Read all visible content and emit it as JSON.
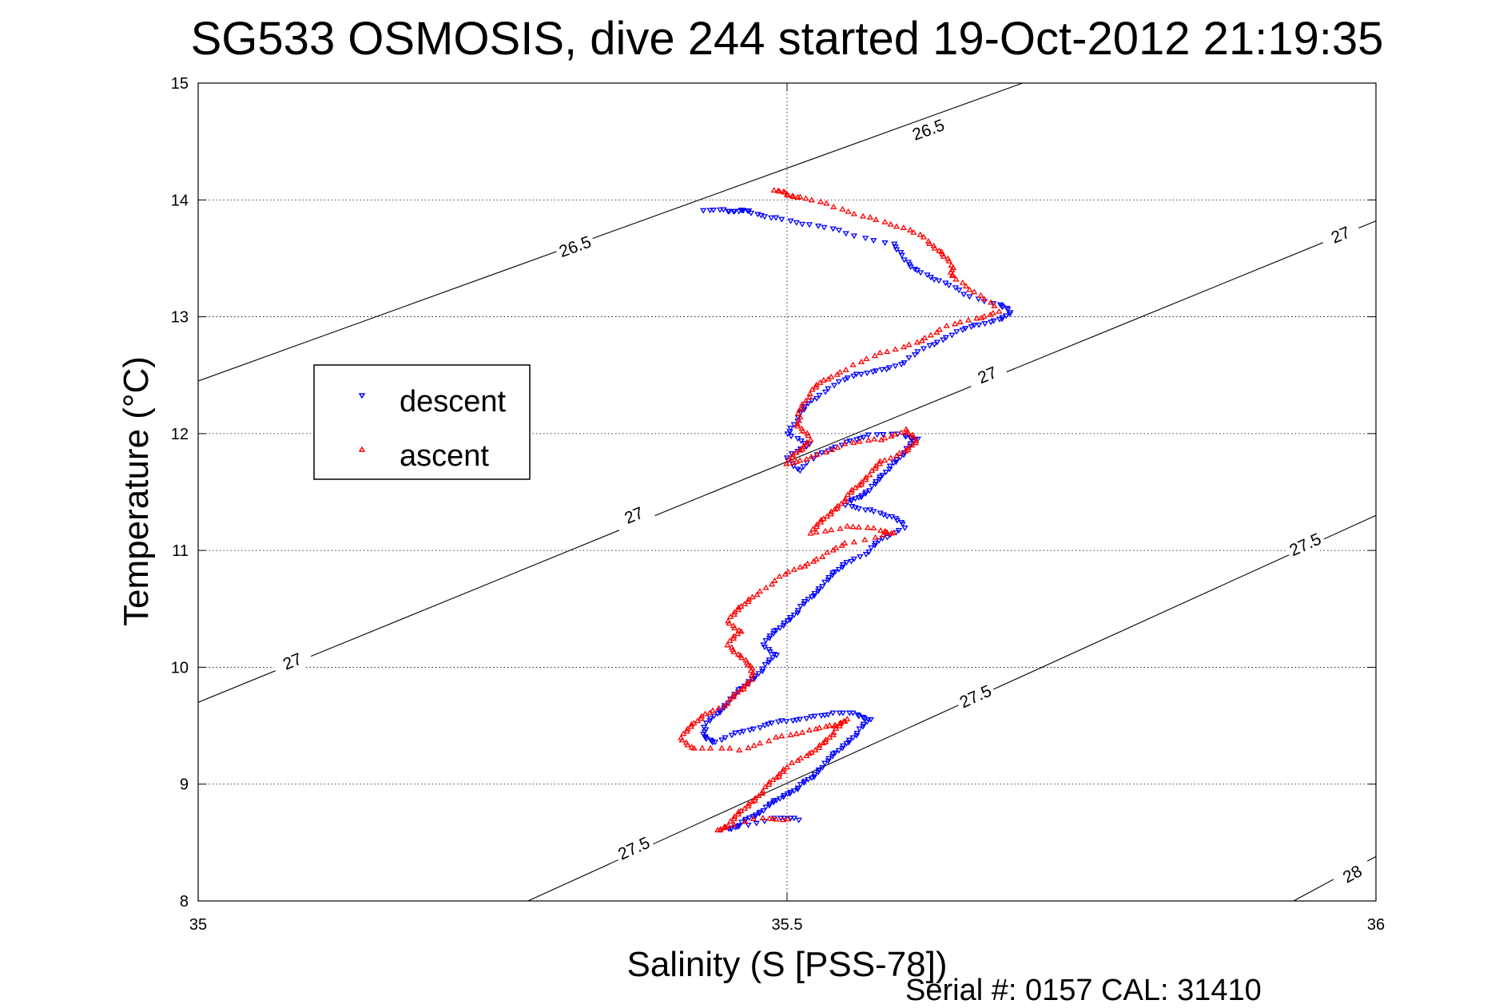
{
  "chart_data": {
    "type": "scatter",
    "title": "SG533 OSMOSIS, dive 244 started 19-Oct-2012 21:19:35",
    "xlabel": "Salinity (S [PSS-78])",
    "ylabel": "Temperature (°C)",
    "xlim": [
      35,
      36
    ],
    "ylim": [
      8,
      15
    ],
    "xticks": [
      35,
      35.5,
      36
    ],
    "yticks": [
      8,
      9,
      10,
      11,
      12,
      13,
      14,
      15
    ],
    "xtick_labels": [
      "35",
      "35.5",
      "36"
    ],
    "ytick_labels": [
      "8",
      "9",
      "10",
      "11",
      "12",
      "13",
      "14",
      "15"
    ],
    "grid": true,
    "legend": {
      "placement": "left",
      "entries": [
        "descent",
        "ascent"
      ]
    },
    "colors": {
      "descent": "#0000ff",
      "ascent": "#ff0000",
      "contour": "#000000"
    },
    "series": [
      {
        "name": "descent",
        "marker": "down-triangle",
        "points": [
          [
            35.43,
            13.9
          ],
          [
            35.45,
            13.91
          ],
          [
            35.46,
            13.91
          ],
          [
            35.47,
            13.9
          ],
          [
            35.49,
            13.85
          ],
          [
            35.52,
            13.78
          ],
          [
            35.55,
            13.72
          ],
          [
            35.59,
            13.62
          ],
          [
            35.6,
            13.5
          ],
          [
            35.61,
            13.4
          ],
          [
            35.63,
            13.3
          ],
          [
            35.65,
            13.2
          ],
          [
            35.68,
            13.1
          ],
          [
            35.69,
            13.05
          ],
          [
            35.68,
            12.98
          ],
          [
            35.66,
            12.92
          ],
          [
            35.64,
            12.85
          ],
          [
            35.62,
            12.75
          ],
          [
            35.6,
            12.62
          ],
          [
            35.58,
            12.55
          ],
          [
            35.56,
            12.5
          ],
          [
            35.54,
            12.42
          ],
          [
            35.52,
            12.28
          ],
          [
            35.51,
            12.15
          ],
          [
            35.5,
            12.0
          ],
          [
            35.52,
            11.9
          ],
          [
            35.5,
            11.8
          ],
          [
            35.51,
            11.68
          ],
          [
            35.53,
            11.85
          ],
          [
            35.55,
            11.93
          ],
          [
            35.57,
            11.98
          ],
          [
            35.6,
            11.99
          ],
          [
            35.61,
            11.95
          ],
          [
            35.6,
            11.85
          ],
          [
            35.59,
            11.75
          ],
          [
            35.58,
            11.62
          ],
          [
            35.57,
            11.52
          ],
          [
            35.56,
            11.45
          ],
          [
            35.55,
            11.4
          ],
          [
            35.57,
            11.35
          ],
          [
            35.59,
            11.28
          ],
          [
            35.6,
            11.2
          ],
          [
            35.58,
            11.1
          ],
          [
            35.57,
            11.0
          ],
          [
            35.55,
            10.9
          ],
          [
            35.54,
            10.8
          ],
          [
            35.53,
            10.7
          ],
          [
            35.52,
            10.6
          ],
          [
            35.51,
            10.5
          ],
          [
            35.5,
            10.4
          ],
          [
            35.49,
            10.3
          ],
          [
            35.48,
            10.2
          ],
          [
            35.49,
            10.1
          ],
          [
            35.48,
            10.0
          ],
          [
            35.47,
            9.9
          ],
          [
            35.46,
            9.8
          ],
          [
            35.45,
            9.7
          ],
          [
            35.44,
            9.6
          ],
          [
            35.43,
            9.5
          ],
          [
            35.43,
            9.4
          ],
          [
            35.44,
            9.35
          ],
          [
            35.46,
            9.45
          ],
          [
            35.48,
            9.5
          ],
          [
            35.5,
            9.55
          ],
          [
            35.52,
            9.58
          ],
          [
            35.54,
            9.6
          ],
          [
            35.56,
            9.6
          ],
          [
            35.57,
            9.55
          ],
          [
            35.56,
            9.45
          ],
          [
            35.55,
            9.35
          ],
          [
            35.54,
            9.25
          ],
          [
            35.53,
            9.15
          ],
          [
            35.52,
            9.05
          ],
          [
            35.51,
            8.98
          ],
          [
            35.5,
            8.92
          ],
          [
            35.49,
            8.85
          ],
          [
            35.48,
            8.78
          ],
          [
            35.47,
            8.72
          ],
          [
            35.46,
            8.66
          ],
          [
            35.45,
            8.62
          ],
          [
            35.49,
            8.7
          ],
          [
            35.51,
            8.7
          ]
        ]
      },
      {
        "name": "ascent",
        "marker": "up-triangle",
        "points": [
          [
            35.49,
            14.07
          ],
          [
            35.5,
            14.05
          ],
          [
            35.51,
            14.02
          ],
          [
            35.54,
            13.95
          ],
          [
            35.57,
            13.85
          ],
          [
            35.6,
            13.75
          ],
          [
            35.62,
            13.65
          ],
          [
            35.63,
            13.55
          ],
          [
            35.64,
            13.45
          ],
          [
            35.64,
            13.35
          ],
          [
            35.66,
            13.2
          ],
          [
            35.68,
            13.05
          ],
          [
            35.66,
            12.98
          ],
          [
            35.63,
            12.9
          ],
          [
            35.61,
            12.78
          ],
          [
            35.58,
            12.68
          ],
          [
            35.55,
            12.55
          ],
          [
            35.53,
            12.45
          ],
          [
            35.52,
            12.35
          ],
          [
            35.51,
            12.2
          ],
          [
            35.51,
            12.05
          ],
          [
            35.52,
            11.95
          ],
          [
            35.51,
            11.85
          ],
          [
            35.5,
            11.75
          ],
          [
            35.52,
            11.8
          ],
          [
            35.55,
            11.9
          ],
          [
            35.58,
            11.95
          ],
          [
            35.6,
            12.03
          ],
          [
            35.61,
            11.95
          ],
          [
            35.6,
            11.85
          ],
          [
            35.58,
            11.75
          ],
          [
            35.57,
            11.65
          ],
          [
            35.56,
            11.55
          ],
          [
            35.55,
            11.45
          ],
          [
            35.54,
            11.35
          ],
          [
            35.53,
            11.25
          ],
          [
            35.52,
            11.15
          ],
          [
            35.55,
            11.2
          ],
          [
            35.58,
            11.18
          ],
          [
            35.59,
            11.15
          ],
          [
            35.55,
            11.05
          ],
          [
            35.53,
            10.95
          ],
          [
            35.51,
            10.85
          ],
          [
            35.49,
            10.75
          ],
          [
            35.47,
            10.6
          ],
          [
            35.46,
            10.5
          ],
          [
            35.45,
            10.4
          ],
          [
            35.46,
            10.3
          ],
          [
            35.45,
            10.2
          ],
          [
            35.46,
            10.1
          ],
          [
            35.47,
            10.0
          ],
          [
            35.47,
            9.9
          ],
          [
            35.46,
            9.8
          ],
          [
            35.45,
            9.7
          ],
          [
            35.43,
            9.6
          ],
          [
            35.42,
            9.5
          ],
          [
            35.41,
            9.4
          ],
          [
            35.42,
            9.3
          ],
          [
            35.46,
            9.3
          ],
          [
            35.49,
            9.4
          ],
          [
            35.52,
            9.45
          ],
          [
            35.54,
            9.5
          ],
          [
            35.55,
            9.55
          ],
          [
            35.54,
            9.45
          ],
          [
            35.53,
            9.35
          ],
          [
            35.52,
            9.25
          ],
          [
            35.5,
            9.15
          ],
          [
            35.49,
            9.05
          ],
          [
            35.48,
            8.95
          ],
          [
            35.47,
            8.85
          ],
          [
            35.46,
            8.75
          ],
          [
            35.45,
            8.65
          ],
          [
            35.44,
            8.6
          ],
          [
            35.48,
            8.72
          ],
          [
            35.5,
            8.7
          ]
        ]
      }
    ],
    "contours": [
      {
        "level": 26.5,
        "points": [
          [
            35.0,
            12.45
          ],
          [
            35.7,
            15.0
          ]
        ],
        "labels": [
          "26.5",
          "26.5"
        ],
        "label_positions": [
          [
            35.32,
            13.6
          ],
          [
            35.62,
            14.6
          ]
        ]
      },
      {
        "level": 27,
        "points": [
          [
            35.0,
            9.7
          ],
          [
            36.0,
            13.82
          ]
        ],
        "labels": [
          "27",
          "27",
          "27",
          "27"
        ],
        "label_positions": [
          [
            35.08,
            10.05
          ],
          [
            35.37,
            11.3
          ],
          [
            35.67,
            12.5
          ],
          [
            35.97,
            13.7
          ]
        ]
      },
      {
        "level": 27.5,
        "points": [
          [
            35.28,
            8.0
          ],
          [
            36.0,
            11.3
          ]
        ],
        "labels": [
          "27.5",
          "27.5",
          "27.5"
        ],
        "label_positions": [
          [
            35.37,
            8.45
          ],
          [
            35.66,
            9.75
          ],
          [
            35.94,
            11.05
          ]
        ]
      },
      {
        "level": 28,
        "points": [
          [
            35.93,
            8.0
          ],
          [
            36.0,
            8.38
          ]
        ],
        "labels": [
          "28"
        ],
        "label_positions": [
          [
            35.98,
            8.23
          ]
        ]
      }
    ]
  },
  "footer": {
    "serial": "Serial #: 0157  CAL: 31410"
  }
}
